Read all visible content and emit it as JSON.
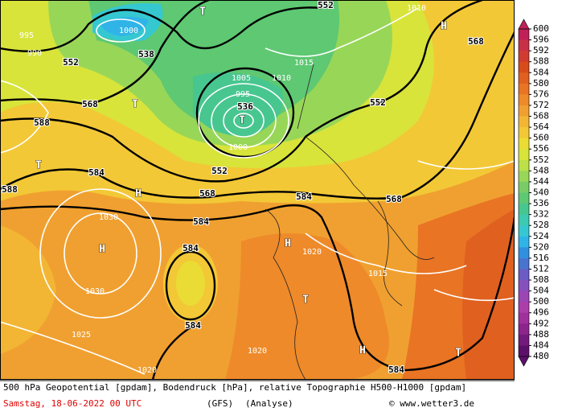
{
  "map": {
    "labels": [
      "552",
      "538",
      "568",
      "588",
      "584",
      "588",
      "568",
      "584",
      "552",
      "536",
      "552",
      "568",
      "552",
      "584",
      "568",
      "584",
      "584",
      "584",
      "1000",
      "995",
      "990",
      "1005",
      "995",
      "1000",
      "1010",
      "1015",
      "1030",
      "1030",
      "1025",
      "1020",
      "1020",
      "1015",
      "1010",
      "1020",
      "H",
      "H",
      "H",
      "H",
      "H",
      "T",
      "T",
      "T",
      "T",
      "T",
      "T"
    ]
  },
  "colorbar": {
    "ticks": [
      600,
      596,
      592,
      588,
      584,
      580,
      576,
      572,
      568,
      564,
      560,
      556,
      552,
      548,
      544,
      540,
      536,
      532,
      528,
      524,
      520,
      516,
      512,
      508,
      504,
      500,
      496,
      492,
      488,
      484,
      480
    ],
    "colors": [
      "#c02058",
      "#c83048",
      "#d03c30",
      "#d84c1c",
      "#e06020",
      "#e87424",
      "#ee8a2a",
      "#f0a030",
      "#f2b634",
      "#f2c836",
      "#eadc34",
      "#d8e43a",
      "#bce048",
      "#98d658",
      "#78cc66",
      "#5ec872",
      "#48c690",
      "#3ccab0",
      "#36c8d0",
      "#30b4e8",
      "#3090e0",
      "#4874d0",
      "#6a5cc4",
      "#8650bc",
      "#9c46b4",
      "#ac3eaa",
      "#a0309c",
      "#8c248c",
      "#741a7c",
      "#5c106a"
    ]
  },
  "caption": {
    "line1": "500 hPa Geopotential [gpdam], Bodendruck [hPa], relative Topographie H500-H1000 [gpdam]",
    "date": "Samstag, 18-06-2022  00 UTC",
    "model": "(GFS)",
    "run": "(Analyse)",
    "copyright": "© www.wetter3.de"
  }
}
